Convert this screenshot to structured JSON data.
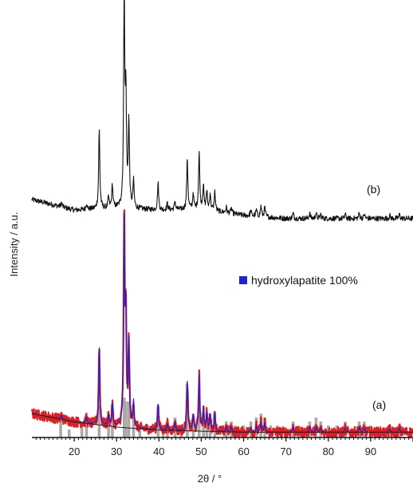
{
  "chart_data": {
    "type": "line",
    "title": "",
    "xlabel": "2θ / °",
    "ylabel": "Intensity / a.u.",
    "xlim": [
      10,
      100
    ],
    "x_ticks": [
      "20",
      "30",
      "40",
      "50",
      "60",
      "70",
      "80",
      "90"
    ],
    "y_ticks_visible": false,
    "grid": false,
    "legend": {
      "position": "center-right",
      "entries": [
        {
          "label": "hydroxylapatite 100%",
          "color": "#2222cc"
        }
      ]
    },
    "annotations": [
      {
        "label": "(b)",
        "near_series": "b"
      },
      {
        "label": "(a)",
        "near_series": "a"
      }
    ],
    "series": [
      {
        "id": "b",
        "color": "#111111",
        "baseline": [
          [
            10,
            0.22
          ],
          [
            20,
            0.12
          ],
          [
            30,
            0.14
          ],
          [
            40,
            0.12
          ],
          [
            50,
            0.13
          ],
          [
            60,
            0.07
          ],
          [
            70,
            0.04
          ],
          [
            80,
            0.04
          ],
          [
            90,
            0.04
          ],
          [
            100,
            0.04
          ]
        ],
        "peaks": [
          [
            17.0,
            0.04
          ],
          [
            22.9,
            0.06
          ],
          [
            25.9,
            0.75
          ],
          [
            28.1,
            0.1
          ],
          [
            29.0,
            0.22
          ],
          [
            31.8,
            2.0
          ],
          [
            32.2,
            1.0
          ],
          [
            32.9,
            0.8
          ],
          [
            34.0,
            0.25
          ],
          [
            39.8,
            0.26
          ],
          [
            42.0,
            0.06
          ],
          [
            43.8,
            0.08
          ],
          [
            46.7,
            0.48
          ],
          [
            48.1,
            0.15
          ],
          [
            49.5,
            0.54
          ],
          [
            50.5,
            0.22
          ],
          [
            51.3,
            0.17
          ],
          [
            52.1,
            0.16
          ],
          [
            53.2,
            0.18
          ],
          [
            55.9,
            0.05
          ],
          [
            57.1,
            0.05
          ],
          [
            61.7,
            0.05
          ],
          [
            63.0,
            0.06
          ],
          [
            64.1,
            0.1
          ],
          [
            65.0,
            0.09
          ],
          [
            71.7,
            0.05
          ],
          [
            75.6,
            0.05
          ],
          [
            77.1,
            0.05
          ],
          [
            78.2,
            0.04
          ],
          [
            84.0,
            0.04
          ],
          [
            87.3,
            0.05
          ],
          [
            88.5,
            0.04
          ],
          [
            94.5,
            0.03
          ],
          [
            96.8,
            0.04
          ]
        ]
      },
      {
        "id": "a-calc",
        "name": "hydroxylapatite 100%",
        "color": "#2222cc",
        "baseline": [
          [
            10,
            0.2
          ],
          [
            20,
            0.12
          ],
          [
            30,
            0.07
          ],
          [
            40,
            0.04
          ],
          [
            50,
            0.03
          ],
          [
            60,
            0.02
          ],
          [
            70,
            0.02
          ],
          [
            80,
            0.02
          ],
          [
            90,
            0.02
          ],
          [
            100,
            0.02
          ]
        ],
        "peaks": [
          [
            17.0,
            0.04
          ],
          [
            22.9,
            0.06
          ],
          [
            25.9,
            0.75
          ],
          [
            28.1,
            0.1
          ],
          [
            29.0,
            0.22
          ],
          [
            31.8,
            2.0
          ],
          [
            32.2,
            1.0
          ],
          [
            32.9,
            0.8
          ],
          [
            34.0,
            0.25
          ],
          [
            39.8,
            0.26
          ],
          [
            42.0,
            0.06
          ],
          [
            43.8,
            0.08
          ],
          [
            46.7,
            0.48
          ],
          [
            48.1,
            0.15
          ],
          [
            49.5,
            0.54
          ],
          [
            50.5,
            0.22
          ],
          [
            51.3,
            0.17
          ],
          [
            52.1,
            0.16
          ],
          [
            53.2,
            0.18
          ],
          [
            55.9,
            0.05
          ],
          [
            57.1,
            0.05
          ],
          [
            61.7,
            0.05
          ],
          [
            63.0,
            0.06
          ],
          [
            64.1,
            0.1
          ],
          [
            65.0,
            0.09
          ],
          [
            71.7,
            0.05
          ],
          [
            75.6,
            0.05
          ],
          [
            77.1,
            0.05
          ],
          [
            78.2,
            0.04
          ],
          [
            84.0,
            0.04
          ],
          [
            87.3,
            0.05
          ],
          [
            88.5,
            0.04
          ],
          [
            94.5,
            0.03
          ],
          [
            96.8,
            0.04
          ]
        ]
      },
      {
        "id": "a-obs",
        "color": "#e02020"
      },
      {
        "id": "a-background",
        "color": "#222222"
      }
    ],
    "reference_bars": {
      "color": "#aaaaaa",
      "items": [
        [
          16.8,
          0.25
        ],
        [
          18.8,
          0.1
        ],
        [
          21.8,
          0.2
        ],
        [
          22.9,
          0.25
        ],
        [
          25.9,
          0.4
        ],
        [
          28.1,
          0.25
        ],
        [
          29.0,
          0.3
        ],
        [
          31.8,
          0.5
        ],
        [
          32.2,
          0.45
        ],
        [
          32.9,
          0.45
        ],
        [
          34.0,
          0.35
        ],
        [
          35.5,
          0.15
        ],
        [
          39.8,
          0.4
        ],
        [
          41.0,
          0.15
        ],
        [
          42.0,
          0.2
        ],
        [
          43.8,
          0.25
        ],
        [
          45.3,
          0.15
        ],
        [
          46.7,
          0.45
        ],
        [
          48.1,
          0.3
        ],
        [
          49.5,
          0.45
        ],
        [
          50.5,
          0.3
        ],
        [
          51.3,
          0.3
        ],
        [
          52.1,
          0.3
        ],
        [
          53.2,
          0.3
        ],
        [
          55.9,
          0.2
        ],
        [
          57.1,
          0.2
        ],
        [
          58.0,
          0.15
        ],
        [
          60.0,
          0.15
        ],
        [
          61.7,
          0.2
        ],
        [
          63.0,
          0.25
        ],
        [
          64.1,
          0.3
        ],
        [
          65.0,
          0.25
        ],
        [
          66.4,
          0.15
        ],
        [
          68.0,
          0.15
        ],
        [
          71.7,
          0.2
        ],
        [
          73.0,
          0.15
        ],
        [
          75.6,
          0.2
        ],
        [
          77.1,
          0.25
        ],
        [
          78.2,
          0.2
        ],
        [
          80.0,
          0.15
        ],
        [
          82.0,
          0.15
        ],
        [
          84.0,
          0.2
        ],
        [
          87.3,
          0.2
        ],
        [
          88.5,
          0.2
        ],
        [
          90.0,
          0.15
        ],
        [
          94.5,
          0.15
        ],
        [
          96.8,
          0.15
        ]
      ]
    }
  }
}
